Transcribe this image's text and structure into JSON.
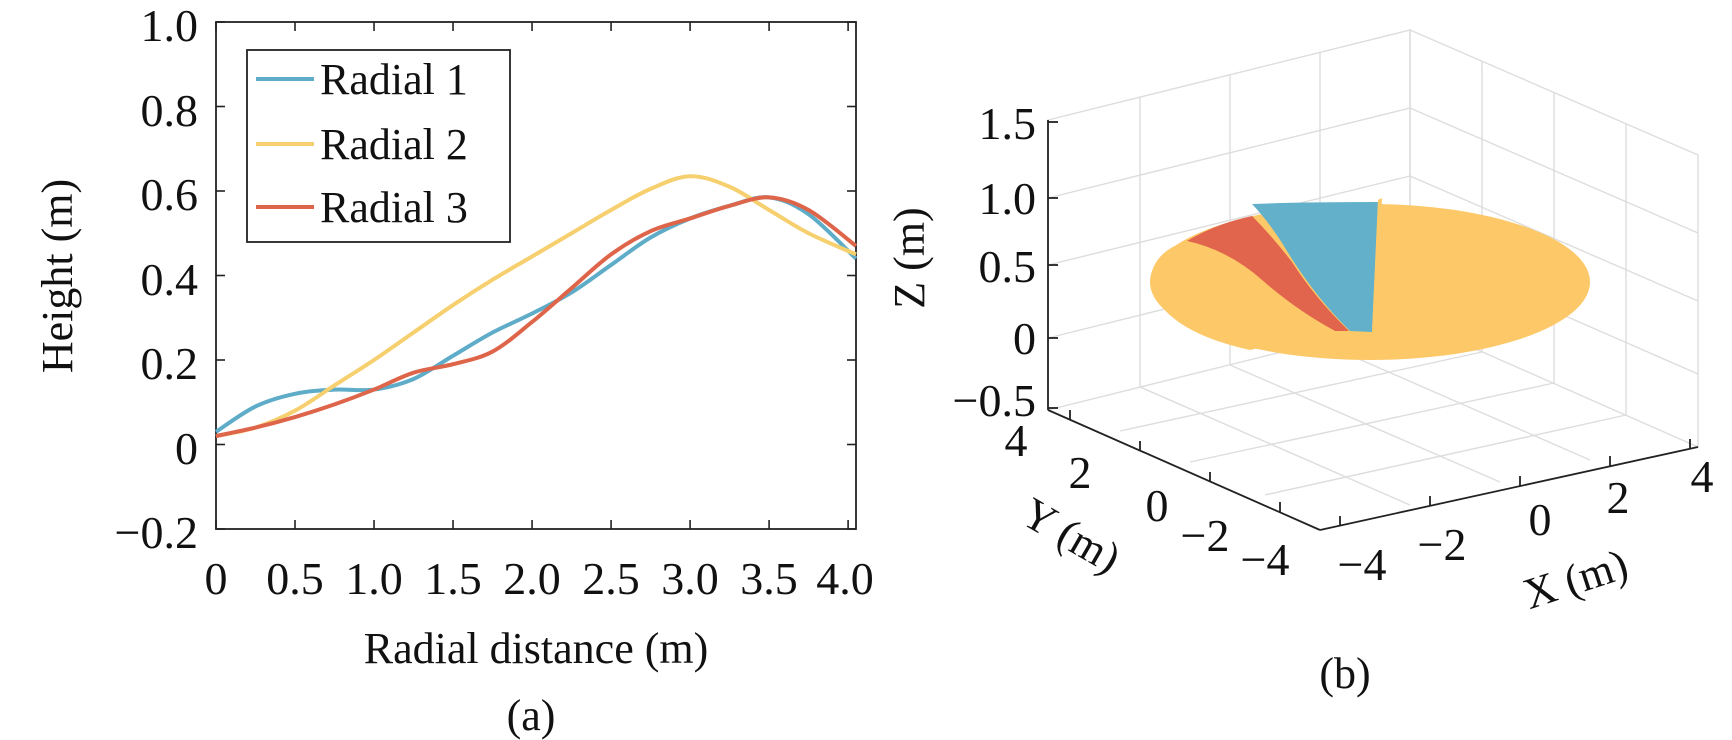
{
  "chart_data": [
    {
      "panel": "(a)",
      "type": "line",
      "xlabel": "Radial distance (m)",
      "ylabel": "Height (m)",
      "xlim": [
        0,
        4.05
      ],
      "ylim": [
        -0.2,
        1.0
      ],
      "xticks": [
        "0",
        "0.5",
        "1.0",
        "1.5",
        "2.0",
        "2.5",
        "3.0",
        "3.5",
        "4.0"
      ],
      "yticks": [
        "1.0",
        "0.8",
        "0.6",
        "0.4",
        "0.2",
        "0",
        "−0.2"
      ],
      "legend_position": "top-left",
      "series": [
        {
          "name": "Radial 1",
          "color": "#5eacc7",
          "x": [
            0,
            0.25,
            0.5,
            0.75,
            1.0,
            1.25,
            1.5,
            1.75,
            2.0,
            2.25,
            2.5,
            2.75,
            3.0,
            3.25,
            3.5,
            3.75,
            4.05
          ],
          "y": [
            0.03,
            0.09,
            0.12,
            0.13,
            0.13,
            0.155,
            0.21,
            0.265,
            0.31,
            0.36,
            0.425,
            0.49,
            0.535,
            0.565,
            0.585,
            0.545,
            0.44
          ]
        },
        {
          "name": "Radial 2",
          "color": "#f6cf6e",
          "x": [
            0,
            0.25,
            0.5,
            0.75,
            1.0,
            1.25,
            1.5,
            1.75,
            2.0,
            2.25,
            2.5,
            2.75,
            3.0,
            3.25,
            3.5,
            3.75,
            4.05
          ],
          "y": [
            0.02,
            0.04,
            0.08,
            0.14,
            0.2,
            0.265,
            0.33,
            0.39,
            0.445,
            0.5,
            0.555,
            0.605,
            0.635,
            0.61,
            0.555,
            0.5,
            0.45
          ]
        },
        {
          "name": "Radial 3",
          "color": "#de654a",
          "x": [
            0,
            0.25,
            0.5,
            0.75,
            1.0,
            1.25,
            1.5,
            1.75,
            2.0,
            2.25,
            2.5,
            2.75,
            3.0,
            3.25,
            3.5,
            3.75,
            4.05
          ],
          "y": [
            0.02,
            0.04,
            0.065,
            0.095,
            0.13,
            0.17,
            0.19,
            0.22,
            0.29,
            0.37,
            0.45,
            0.505,
            0.535,
            0.565,
            0.585,
            0.555,
            0.47
          ]
        }
      ]
    },
    {
      "panel": "(b)",
      "type": "surface-3d",
      "xlabel": "X (m)",
      "ylabel": "Y (m)",
      "zlabel": "Z (m)",
      "xticks": [
        "−4",
        "−2",
        "0",
        "2",
        "4"
      ],
      "yticks": [
        "4",
        "2",
        "0",
        "−2",
        "−4"
      ],
      "zticks": [
        "1.5",
        "1.0",
        "0.5",
        "0",
        "−0.5"
      ],
      "colors": {
        "disk": "#fdc868",
        "wedge_blue": "#62b0c9",
        "wedge_red": "#e0654c"
      }
    }
  ]
}
